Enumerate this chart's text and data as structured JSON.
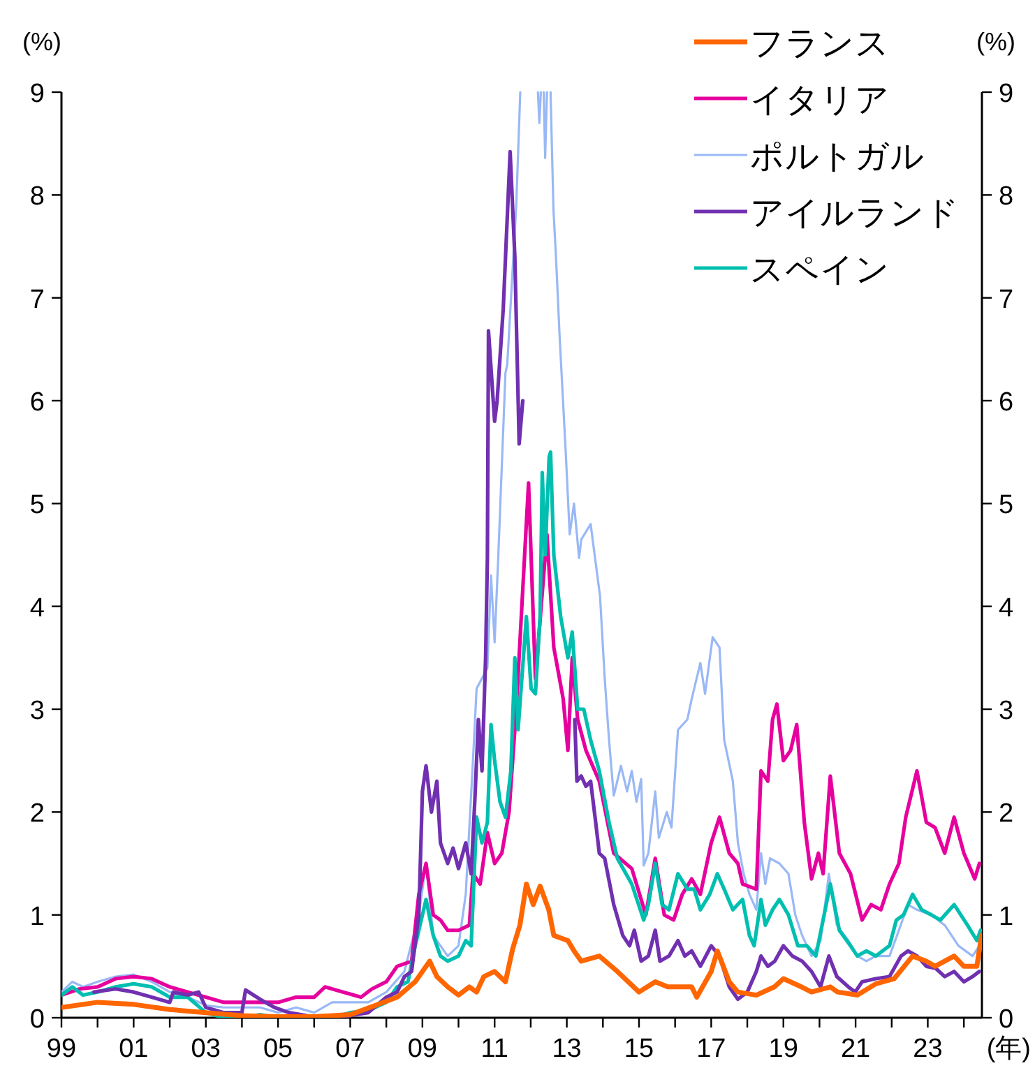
{
  "chart_data": {
    "type": "line",
    "xlabel": "(年)",
    "ylabel": "(%)",
    "y2label": "(%)",
    "xlim": [
      1999,
      2024.5
    ],
    "xticks": [
      {
        "value": 1999,
        "label": "99"
      },
      {
        "value": 2000,
        "label": null
      },
      {
        "value": 2001,
        "label": "01"
      },
      {
        "value": 2002,
        "label": null
      },
      {
        "value": 2003,
        "label": "03"
      },
      {
        "value": 2004,
        "label": null
      },
      {
        "value": 2005,
        "label": "05"
      },
      {
        "value": 2006,
        "label": null
      },
      {
        "value": 2007,
        "label": "07"
      },
      {
        "value": 2008,
        "label": null
      },
      {
        "value": 2009,
        "label": "09"
      },
      {
        "value": 2010,
        "label": null
      },
      {
        "value": 2011,
        "label": "11"
      },
      {
        "value": 2012,
        "label": null
      },
      {
        "value": 2013,
        "label": "13"
      },
      {
        "value": 2014,
        "label": null
      },
      {
        "value": 2015,
        "label": "15"
      },
      {
        "value": 2016,
        "label": null
      },
      {
        "value": 2017,
        "label": "17"
      },
      {
        "value": 2018,
        "label": null
      },
      {
        "value": 2019,
        "label": "19"
      },
      {
        "value": 2020,
        "label": null
      },
      {
        "value": 2021,
        "label": "21"
      },
      {
        "value": 2022,
        "label": null
      },
      {
        "value": 2023,
        "label": "23"
      },
      {
        "value": 2024,
        "label": null
      }
    ],
    "ylim": [
      0,
      9
    ],
    "yticks": [
      0,
      1,
      2,
      3,
      4,
      5,
      6,
      7,
      8,
      9
    ],
    "y2lim": [
      0,
      9
    ],
    "y2ticks": [
      0,
      1,
      2,
      3,
      4,
      5,
      6,
      7,
      8,
      9
    ],
    "grid": false,
    "legend": "top right",
    "marker": "none",
    "line_style": "solid",
    "series": [
      {
        "name": "フランス",
        "color": "#ff6600",
        "x": [
          1999,
          2000,
          2001,
          2002,
          2003,
          2004,
          2005,
          2006,
          2007,
          2007.7,
          2008.3,
          2008.8,
          2009.2,
          2009.4,
          2009.7,
          2010,
          2010.3,
          2010.5,
          2010.7,
          2011,
          2011.3,
          2011.5,
          2011.7,
          2011.88,
          2012.07,
          2012.26,
          2012.5,
          2012.64,
          2013.03,
          2013.2,
          2013.4,
          2013.9,
          2014.4,
          2015,
          2015.45,
          2015.8,
          2016.46,
          2016.6,
          2017,
          2017.17,
          2017.5,
          2017.74,
          2018.25,
          2018.75,
          2019,
          2019.5,
          2019.78,
          2020.3,
          2020.5,
          2021.05,
          2021.56,
          2022.07,
          2022.58,
          2022.96,
          2023.2,
          2023.73,
          2024,
          2024.36,
          2024.49
        ],
        "values": [
          0.1,
          0.15,
          0.13,
          0.08,
          0.05,
          0.02,
          0.01,
          0.01,
          0.03,
          0.12,
          0.2,
          0.35,
          0.55,
          0.4,
          0.3,
          0.22,
          0.3,
          0.25,
          0.4,
          0.45,
          0.35,
          0.67,
          0.9,
          1.3,
          1.1,
          1.28,
          1.05,
          0.8,
          0.75,
          0.65,
          0.55,
          0.6,
          0.45,
          0.25,
          0.35,
          0.3,
          0.3,
          0.2,
          0.45,
          0.65,
          0.35,
          0.25,
          0.22,
          0.3,
          0.38,
          0.3,
          0.25,
          0.3,
          0.25,
          0.22,
          0.33,
          0.38,
          0.6,
          0.55,
          0.5,
          0.6,
          0.5,
          0.5,
          0.8
        ]
      },
      {
        "name": "イタリア",
        "color": "#e6009e",
        "x": [
          1999,
          1999.5,
          2000,
          2000.5,
          2001,
          2001.5,
          2002,
          2002.5,
          2003,
          2003.5,
          2004,
          2004.5,
          2005,
          2005.5,
          2006,
          2006.3,
          2006.8,
          2007.3,
          2007.6,
          2008,
          2008.3,
          2008.7,
          2008.9,
          2009.1,
          2009.3,
          2009.5,
          2009.7,
          2010,
          2010.3,
          2010.4,
          2010.6,
          2010.8,
          2011,
          2011.2,
          2011.4,
          2011.6,
          2011.94,
          2012.13,
          2012.45,
          2012.64,
          2012.9,
          2013.03,
          2013.15,
          2013.3,
          2013.53,
          2013.9,
          2014.3,
          2014.8,
          2015.19,
          2015.45,
          2015.7,
          2015.96,
          2016.2,
          2016.46,
          2016.7,
          2017,
          2017.23,
          2017.5,
          2017.74,
          2017.87,
          2018.25,
          2018.38,
          2018.57,
          2018.7,
          2018.82,
          2019,
          2019.2,
          2019.37,
          2019.58,
          2019.78,
          2019.97,
          2020.1,
          2020.3,
          2020.55,
          2020.86,
          2021.18,
          2021.43,
          2021.7,
          2021.94,
          2022.2,
          2022.39,
          2022.7,
          2022.96,
          2023.2,
          2023.47,
          2023.73,
          2024,
          2024.3,
          2024.43
        ],
        "values": [
          0.22,
          0.28,
          0.3,
          0.38,
          0.4,
          0.38,
          0.3,
          0.25,
          0.2,
          0.15,
          0.15,
          0.15,
          0.15,
          0.2,
          0.2,
          0.3,
          0.25,
          0.2,
          0.28,
          0.35,
          0.5,
          0.55,
          1.2,
          1.5,
          1.0,
          0.95,
          0.85,
          0.85,
          0.9,
          1.4,
          1.3,
          1.8,
          1.5,
          1.6,
          2.0,
          3.0,
          5.2,
          3.3,
          4.7,
          3.6,
          3.1,
          2.6,
          3.5,
          2.9,
          2.6,
          2.3,
          1.6,
          1.45,
          1.0,
          1.55,
          1.0,
          0.95,
          1.2,
          1.35,
          1.2,
          1.7,
          1.95,
          1.6,
          1.5,
          1.3,
          1.25,
          2.4,
          2.3,
          2.9,
          3.05,
          2.5,
          2.6,
          2.85,
          1.9,
          1.35,
          1.6,
          1.4,
          2.35,
          1.6,
          1.4,
          0.95,
          1.1,
          1.05,
          1.3,
          1.5,
          1.95,
          2.4,
          1.9,
          1.85,
          1.6,
          1.95,
          1.6,
          1.35,
          1.5
        ]
      },
      {
        "name": "ポルトガル",
        "color": "#99b8f5",
        "x": [
          1999,
          1999.3,
          1999.6,
          2000,
          2000.5,
          2001,
          2001.5,
          2002,
          2002.5,
          2003,
          2003.5,
          2004,
          2004.5,
          2005,
          2005.5,
          2006,
          2006.5,
          2007,
          2007.5,
          2008,
          2008.5,
          2008.9,
          2009.1,
          2009.3,
          2009.7,
          2010,
          2010.2,
          2010.4,
          2010.5,
          2010.8,
          2010.9,
          2011,
          2011.1,
          2011.3,
          2011.35,
          2011.6,
          2011.71,
          null,
          2012.2,
          2012.24,
          2012.28,
          null,
          2012.36,
          2012.4,
          2012.45,
          null,
          2012.55,
          2012.63,
          2012.7,
          2012.8,
          2012.97,
          2013.08,
          2013.2,
          2013.34,
          2013.4,
          2013.66,
          2013.92,
          2014.05,
          2014.17,
          2014.3,
          2014.5,
          2014.67,
          2014.8,
          2014.93,
          2015.06,
          2015.13,
          2015.26,
          2015.45,
          2015.55,
          2015.77,
          2015.9,
          2016.08,
          2016.34,
          2016.46,
          2016.7,
          2016.83,
          2017.04,
          2017.23,
          2017.36,
          2017.48,
          2017.6,
          2017.74,
          2017.9,
          2018.06,
          2018.25,
          2018.38,
          2018.5,
          2018.63,
          2018.89,
          2019.14,
          2019.33,
          2019.52,
          2019.78,
          2020.03,
          2020.26,
          2020.48,
          2020.8,
          2021.05,
          2021.3,
          2021.56,
          2021.94,
          2022.2,
          2022.45,
          2022.7,
          2023.1,
          2023.47,
          2023.85,
          2024.24,
          2024.43
        ],
        "values": [
          0.25,
          0.35,
          0.3,
          0.35,
          0.4,
          0.42,
          0.35,
          0.25,
          0.2,
          0.12,
          0.1,
          0.1,
          0.1,
          0.05,
          0.1,
          0.05,
          0.15,
          0.15,
          0.15,
          0.25,
          0.45,
          1.0,
          1.5,
          0.8,
          0.6,
          0.7,
          1.2,
          2.5,
          3.2,
          3.4,
          4.3,
          3.65,
          4.47,
          6.27,
          6.35,
          7.9,
          9,
          null,
          9,
          8.7,
          9,
          null,
          9,
          8.36,
          9,
          null,
          9,
          7.86,
          7.4,
          6.63,
          5.5,
          4.7,
          5.0,
          4.47,
          4.65,
          4.8,
          4.1,
          3.3,
          2.7,
          2.16,
          2.45,
          2.2,
          2.4,
          2.1,
          2.32,
          1.48,
          1.6,
          2.2,
          1.75,
          2.0,
          1.85,
          2.8,
          2.9,
          3.1,
          3.45,
          3.15,
          3.7,
          3.6,
          2.7,
          2.5,
          2.3,
          1.7,
          1.4,
          1.2,
          1.05,
          1.6,
          1.3,
          1.55,
          1.5,
          1.4,
          1.0,
          0.8,
          0.6,
          0.75,
          1.4,
          0.9,
          0.75,
          0.6,
          0.55,
          0.6,
          0.6,
          0.85,
          1.1,
          1.05,
          1.0,
          0.9,
          0.7,
          0.6,
          0.7
        ]
      },
      {
        "name": "アイルランド",
        "color": "#7030b0",
        "x": [
          1999.9,
          2000.5,
          2001,
          2001.5,
          2002,
          2002.1,
          2002.5,
          2002.8,
          2003,
          2003.5,
          2004,
          2004.1,
          2004.5,
          2004.9,
          2005.3,
          2005.8,
          2006.5,
          2007,
          2007.5,
          2008,
          2008.3,
          2008.5,
          2008.7,
          2008.9,
          2009,
          2009.1,
          2009.25,
          2009.4,
          2009.5,
          2009.7,
          2009.85,
          2010,
          2010.2,
          2010.35,
          2010.45,
          2010.55,
          2010.65,
          2010.75,
          2010.8,
          2010.83,
          2011,
          2011.07,
          2011.24,
          2011.43,
          2011.56,
          2011.68,
          2011.78,
          null,
          2013.22,
          2013.28,
          2013.4,
          2013.53,
          2013.66,
          2013.8,
          2013.9,
          2014.05,
          2014.3,
          2014.55,
          2014.74,
          2014.87,
          2015.06,
          2015.26,
          2015.45,
          2015.58,
          2015.83,
          2016.08,
          2016.27,
          2016.46,
          2016.7,
          2017,
          2017.23,
          2017.5,
          2017.74,
          2018,
          2018.25,
          2018.38,
          2018.57,
          2018.76,
          2019,
          2019.25,
          2019.52,
          2019.78,
          2020.03,
          2020.26,
          2020.48,
          2020.8,
          2020.99,
          2021.18,
          2021.56,
          2021.94,
          2022.26,
          2022.45,
          2022.7,
          2022.96,
          2023.22,
          2023.47,
          2023.73,
          2024,
          2024.24,
          2024.43
        ],
        "values": [
          0.25,
          0.28,
          0.25,
          0.2,
          0.15,
          0.25,
          0.22,
          0.25,
          0.1,
          0.05,
          0.05,
          0.27,
          0.18,
          0.1,
          0.05,
          0.02,
          0.0,
          0.02,
          0.05,
          0.2,
          0.25,
          0.4,
          0.45,
          1.0,
          2.2,
          2.45,
          2.0,
          2.3,
          1.7,
          1.5,
          1.65,
          1.45,
          1.7,
          1.4,
          2.1,
          2.9,
          2.4,
          3.5,
          4.47,
          6.68,
          5.8,
          6.0,
          6.9,
          8.42,
          7.4,
          5.58,
          6.0,
          null,
          2.9,
          2.3,
          2.35,
          2.25,
          2.3,
          1.9,
          1.6,
          1.55,
          1.1,
          0.8,
          0.7,
          0.85,
          0.55,
          0.6,
          0.85,
          0.55,
          0.6,
          0.75,
          0.6,
          0.65,
          0.5,
          0.7,
          0.6,
          0.3,
          0.18,
          0.25,
          0.45,
          0.6,
          0.5,
          0.55,
          0.7,
          0.6,
          0.55,
          0.45,
          0.3,
          0.6,
          0.4,
          0.3,
          0.25,
          0.35,
          0.38,
          0.4,
          0.6,
          0.65,
          0.6,
          0.5,
          0.48,
          0.4,
          0.45,
          0.35,
          0.4,
          0.45
        ]
      },
      {
        "name": "スペイン",
        "color": "#00bfb0",
        "x": [
          1999,
          1999.3,
          1999.6,
          2000,
          2000.5,
          2001,
          2001.5,
          2002,
          2002.5,
          2003,
          2003.5,
          2004,
          2004.5,
          2005,
          2005.5,
          2006,
          2006.5,
          2007,
          2007.5,
          2008,
          2008.3,
          2008.6,
          2008.8,
          2009.1,
          2009.3,
          2009.5,
          2009.7,
          2010,
          2010.2,
          2010.35,
          2010.5,
          2010.65,
          2010.8,
          2010.9,
          2011,
          2011.15,
          2011.3,
          2011.45,
          2011.56,
          2011.65,
          2011.88,
          2012.01,
          2012.13,
          2012.26,
          2012.32,
          2012.4,
          2012.51,
          2012.55,
          2012.64,
          2012.83,
          2013.03,
          2013.15,
          2013.3,
          2013.47,
          2013.66,
          2013.9,
          2014.17,
          2014.4,
          2014.8,
          2015.13,
          2015.26,
          2015.45,
          2015.64,
          2015.83,
          2016.08,
          2016.34,
          2016.53,
          2016.7,
          2016.96,
          2017.17,
          2017.36,
          2017.6,
          2017.87,
          2018.06,
          2018.19,
          2018.38,
          2018.5,
          2018.7,
          2018.89,
          2019.14,
          2019.4,
          2019.65,
          2019.9,
          2020.3,
          2020.55,
          2020.86,
          2021.05,
          2021.3,
          2021.56,
          2021.94,
          2022.13,
          2022.33,
          2022.58,
          2022.83,
          2023.1,
          2023.35,
          2023.73,
          2024.1,
          2024.36,
          2024.46
        ],
        "values": [
          0.22,
          0.3,
          0.22,
          0.25,
          0.3,
          0.33,
          0.3,
          0.2,
          0.2,
          0.05,
          0.0,
          0.0,
          0.03,
          0.0,
          0.02,
          0.0,
          0.0,
          0.05,
          0.07,
          0.15,
          0.3,
          0.35,
          0.7,
          1.15,
          0.8,
          0.6,
          0.55,
          0.6,
          0.75,
          0.7,
          1.95,
          1.7,
          1.9,
          2.85,
          2.5,
          2.1,
          1.95,
          2.4,
          3.5,
          2.8,
          3.9,
          3.2,
          3.15,
          3.9,
          5.3,
          4.5,
          5.45,
          5.5,
          4.5,
          3.9,
          3.5,
          3.75,
          3.0,
          3.0,
          2.7,
          2.4,
          1.9,
          1.55,
          1.3,
          0.95,
          1.1,
          1.5,
          1.1,
          1.05,
          1.4,
          1.25,
          1.25,
          1.05,
          1.2,
          1.4,
          1.25,
          1.05,
          1.15,
          0.8,
          0.7,
          1.15,
          0.9,
          1.05,
          1.15,
          1.0,
          0.7,
          0.7,
          0.6,
          1.3,
          0.85,
          0.7,
          0.6,
          0.65,
          0.6,
          0.7,
          0.95,
          1.0,
          1.2,
          1.05,
          1.0,
          0.95,
          1.1,
          0.9,
          0.75,
          0.85
        ]
      }
    ]
  }
}
